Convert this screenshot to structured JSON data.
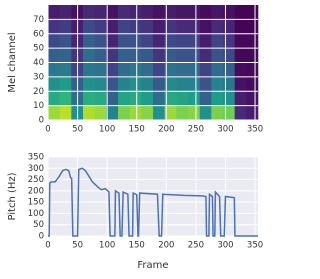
{
  "chart_data": [
    {
      "type": "heatmap",
      "ylabel": "Mel channel",
      "colormap": "viridis",
      "grid": true,
      "xlim": [
        0,
        355
      ],
      "ylim": [
        0,
        80
      ],
      "xticks": [
        0,
        50,
        100,
        150,
        200,
        250,
        300,
        350
      ],
      "yticks": [
        0,
        10,
        20,
        30,
        40,
        50,
        60,
        70
      ],
      "z": [
        [
          0.85,
          0.9,
          0.5,
          0.88,
          0.85,
          0.45,
          0.8,
          0.85,
          0.82,
          0.5,
          0.85,
          0.8,
          0.82,
          0.5,
          0.8,
          0.78,
          0.12,
          0.08
        ],
        [
          0.6,
          0.65,
          0.35,
          0.62,
          0.6,
          0.3,
          0.58,
          0.6,
          0.55,
          0.35,
          0.6,
          0.58,
          0.55,
          0.3,
          0.55,
          0.5,
          0.08,
          0.05
        ],
        [
          0.5,
          0.55,
          0.3,
          0.5,
          0.48,
          0.25,
          0.45,
          0.5,
          0.45,
          0.28,
          0.48,
          0.45,
          0.45,
          0.25,
          0.45,
          0.4,
          0.05,
          0.03
        ],
        [
          0.4,
          0.42,
          0.2,
          0.4,
          0.38,
          0.2,
          0.35,
          0.4,
          0.35,
          0.2,
          0.38,
          0.35,
          0.35,
          0.2,
          0.35,
          0.3,
          0.03,
          0.02
        ],
        [
          0.3,
          0.32,
          0.15,
          0.35,
          0.3,
          0.15,
          0.3,
          0.3,
          0.28,
          0.15,
          0.28,
          0.25,
          0.25,
          0.12,
          0.25,
          0.22,
          0.02,
          0.02
        ],
        [
          0.22,
          0.25,
          0.1,
          0.3,
          0.25,
          0.1,
          0.25,
          0.25,
          0.2,
          0.1,
          0.22,
          0.2,
          0.2,
          0.08,
          0.2,
          0.15,
          0.02,
          0.02
        ],
        [
          0.15,
          0.18,
          0.08,
          0.22,
          0.18,
          0.08,
          0.2,
          0.18,
          0.15,
          0.08,
          0.15,
          0.12,
          0.12,
          0.05,
          0.12,
          0.1,
          0.01,
          0.01
        ],
        [
          0.08,
          0.1,
          0.05,
          0.12,
          0.1,
          0.05,
          0.12,
          0.1,
          0.08,
          0.05,
          0.08,
          0.06,
          0.06,
          0.03,
          0.06,
          0.05,
          0.01,
          0.01
        ]
      ]
    },
    {
      "type": "line",
      "xlabel": "Frame",
      "ylabel": "Pitch (Hz)",
      "color": "#4c72b0",
      "grid": true,
      "xlim": [
        0,
        355
      ],
      "ylim": [
        0,
        350
      ],
      "xticks": [
        0,
        50,
        100,
        150,
        200,
        250,
        300,
        350
      ],
      "yticks": [
        0,
        50,
        100,
        150,
        200,
        250,
        300,
        350
      ],
      "x": [
        0,
        2,
        3,
        6,
        12,
        18,
        25,
        30,
        35,
        38,
        40,
        42,
        50,
        52,
        58,
        63,
        68,
        75,
        85,
        90,
        97,
        103,
        105,
        113,
        114,
        120,
        122,
        125,
        127,
        135,
        137,
        143,
        144,
        150,
        152,
        153,
        155,
        185,
        188,
        192,
        194,
        230,
        260,
        267,
        268,
        272,
        273,
        278,
        279,
        282,
        283,
        290,
        292,
        298,
        300,
        315,
        316,
        355
      ],
      "values": [
        0,
        0,
        235,
        240,
        240,
        260,
        290,
        295,
        290,
        260,
        255,
        0,
        0,
        295,
        300,
        290,
        270,
        240,
        215,
        205,
        210,
        195,
        0,
        0,
        200,
        190,
        0,
        0,
        195,
        185,
        0,
        0,
        190,
        183,
        0,
        0,
        190,
        185,
        0,
        0,
        185,
        180,
        178,
        175,
        0,
        0,
        185,
        175,
        0,
        0,
        195,
        175,
        0,
        0,
        175,
        170,
        0,
        0
      ]
    }
  ]
}
